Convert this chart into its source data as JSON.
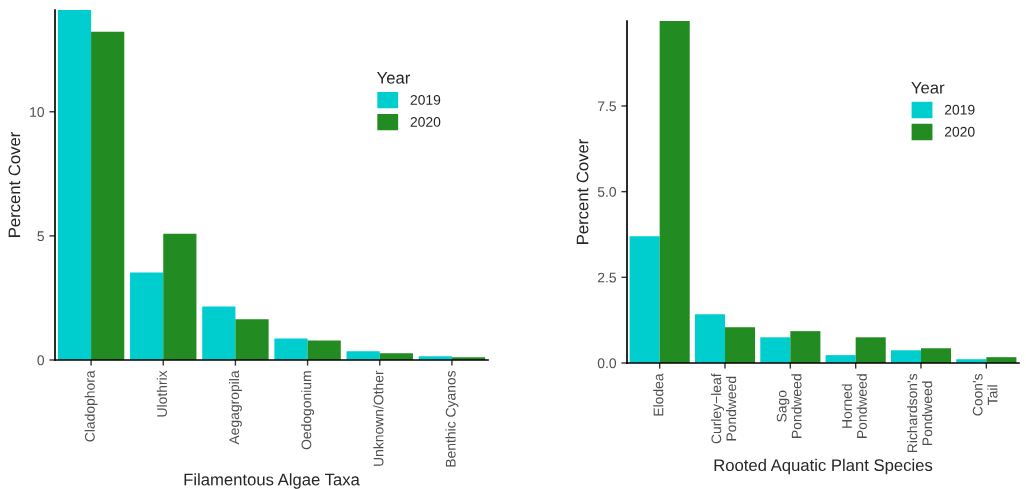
{
  "chart_data": [
    {
      "type": "bar",
      "xlabel": "Filamentous Algae Taxa",
      "ylabel": "Percent Cover",
      "legend_title": "Year",
      "legend": "top right",
      "grid": false,
      "categories": [
        "Cladophora",
        "Ulothrix",
        "Aegagropila",
        "Oedogonium",
        "Unknown/Other",
        "Benthic Cyanos"
      ],
      "ylim": [
        0,
        14.1
      ],
      "yticks": [
        0,
        5,
        10
      ],
      "series": [
        {
          "name": "2019",
          "color": "#00cdcd",
          "values": [
            14.1,
            3.53,
            2.16,
            0.87,
            0.35,
            0.15
          ]
        },
        {
          "name": "2020",
          "color": "#228b22",
          "values": [
            13.22,
            5.09,
            1.64,
            0.79,
            0.27,
            0.11
          ]
        }
      ]
    },
    {
      "type": "bar",
      "xlabel": "Rooted Aquatic Plant Species",
      "ylabel": "Percent Cover",
      "legend_title": "Year",
      "legend": "top right",
      "grid": false,
      "categories": [
        "Elodea",
        "Curley−leaf\nPondweed",
        "Sago\nPondweed",
        "Horned\nPondweed",
        "Richardson's\nPondweed",
        "Coon's\nTail"
      ],
      "ylim": [
        0,
        9.98
      ],
      "yticks": [
        {
          "value": 0,
          "label": "0.0"
        },
        {
          "value": 2.5,
          "label": "2.5"
        },
        {
          "value": 5.0,
          "label": "5.0"
        },
        {
          "value": 7.5,
          "label": "7.5"
        }
      ],
      "series": [
        {
          "name": "2019",
          "color": "#00cdcd",
          "values": [
            3.7,
            1.42,
            0.75,
            0.23,
            0.37,
            0.11
          ]
        },
        {
          "name": "2020",
          "color": "#228b22",
          "values": [
            9.98,
            1.04,
            0.93,
            0.75,
            0.43,
            0.17
          ]
        }
      ]
    }
  ]
}
